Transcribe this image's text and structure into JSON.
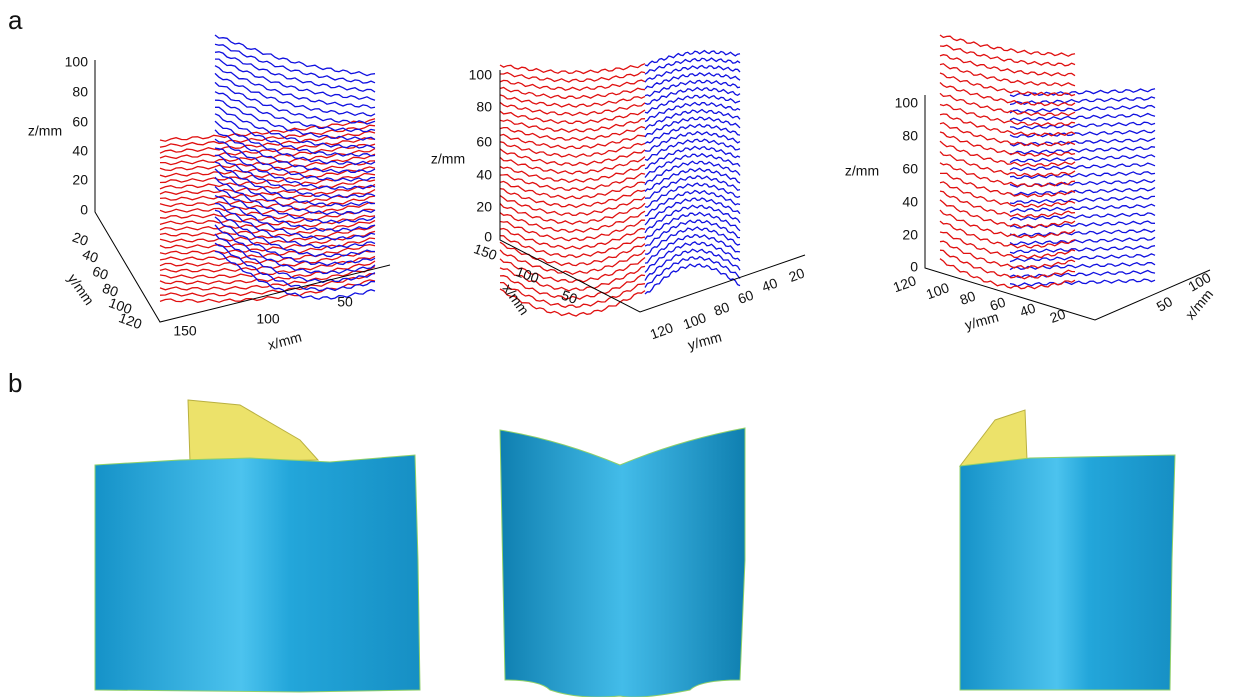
{
  "panels": [
    {
      "label": "a",
      "plots": [
        {
          "z_label": "z/mm",
          "y_label": "y/mm",
          "x_label": "x/mm",
          "z_ticks": [
            100,
            80,
            60,
            40,
            20,
            0
          ],
          "y_ticks": [
            20,
            40,
            60,
            80,
            100,
            120
          ],
          "x_ticks": [
            150,
            100,
            50
          ]
        },
        {
          "z_label": "z/mm",
          "x_label": "x/mm",
          "y_label": "y/mm",
          "z_ticks": [
            100,
            80,
            60,
            40,
            20,
            0
          ],
          "x_ticks": [
            150,
            100,
            50
          ],
          "y_ticks": [
            120,
            100,
            80,
            60,
            40,
            20
          ]
        },
        {
          "z_label": "z/mm",
          "y_label": "y/mm",
          "x_label": "x/mm",
          "z_ticks": [
            100,
            80,
            60,
            40,
            20,
            0
          ],
          "y_ticks": [
            120,
            100,
            80,
            60,
            40,
            20
          ],
          "x_ticks": [
            100,
            50
          ]
        }
      ]
    },
    {
      "label": "b"
    }
  ]
}
